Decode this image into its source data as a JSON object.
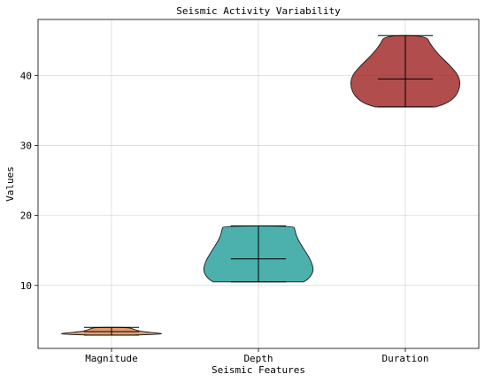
{
  "chart_data": {
    "type": "violin",
    "title": "Seismic Activity Variability",
    "xlabel": "Seismic Features",
    "ylabel": "Values",
    "categories": [
      "Magnitude",
      "Depth",
      "Duration"
    ],
    "ylim": [
      1,
      48
    ],
    "yticks": [
      10,
      20,
      30,
      40
    ],
    "grid": true,
    "series": [
      {
        "category": "Magnitude",
        "color": "#d9834b",
        "min": 2.9,
        "max": 4.0,
        "median": 3.4,
        "profile": [
          [
            2.9,
            0.4
          ],
          [
            3.05,
            0.95
          ],
          [
            3.2,
            0.85
          ],
          [
            3.4,
            0.55
          ],
          [
            3.6,
            0.45
          ],
          [
            3.8,
            0.38
          ],
          [
            4.0,
            0.3
          ]
        ]
      },
      {
        "category": "Depth",
        "color": "#1f9c98",
        "min": 10.5,
        "max": 18.5,
        "median": 13.8,
        "profile": [
          [
            10.5,
            0.82
          ],
          [
            11.0,
            0.92
          ],
          [
            12.0,
            1.0
          ],
          [
            13.0,
            0.98
          ],
          [
            14.0,
            0.92
          ],
          [
            15.0,
            0.84
          ],
          [
            16.0,
            0.76
          ],
          [
            17.0,
            0.69
          ],
          [
            18.0,
            0.66
          ],
          [
            18.5,
            0.64
          ]
        ]
      },
      {
        "category": "Duration",
        "color": "#9e2020",
        "min": 35.5,
        "max": 45.7,
        "median": 39.5,
        "profile": [
          [
            35.5,
            0.55
          ],
          [
            36.0,
            0.75
          ],
          [
            37.0,
            0.92
          ],
          [
            38.5,
            1.0
          ],
          [
            40.0,
            0.97
          ],
          [
            41.5,
            0.8
          ],
          [
            43.0,
            0.6
          ],
          [
            44.5,
            0.45
          ],
          [
            45.7,
            0.38
          ]
        ]
      }
    ]
  }
}
